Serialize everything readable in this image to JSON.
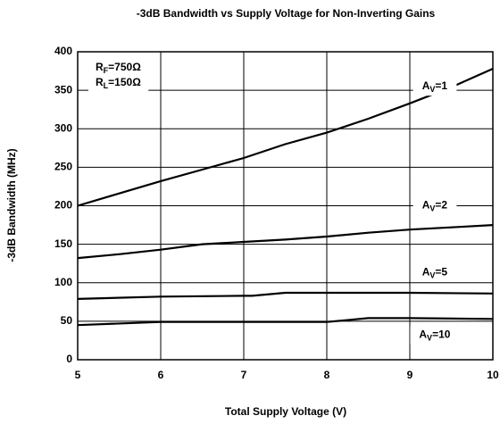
{
  "chart_data": {
    "type": "line",
    "title": "-3dB Bandwidth vs Supply Voltage for Non-Inverting Gains",
    "x_label": "Total Supply Voltage (V)",
    "y_label": "-3dB Bandwidth (MHz)",
    "annotations": [
      "RF=750Ω",
      "RL=150Ω"
    ],
    "xlim": [
      5,
      10
    ],
    "xticks": [
      5,
      6,
      7,
      8,
      9,
      10
    ],
    "ylim": [
      0,
      400
    ],
    "yticks": [
      0,
      50,
      100,
      150,
      200,
      250,
      300,
      350,
      400
    ],
    "grid": true,
    "series": [
      {
        "name": "AV=1",
        "color": "#000000",
        "x": [
          5,
          5.5,
          6,
          6.5,
          7,
          7.5,
          8,
          8.5,
          9,
          9.5,
          10
        ],
        "values": [
          200,
          216,
          232,
          247,
          262,
          280,
          295,
          313,
          333,
          354,
          378
        ]
      },
      {
        "name": "AV=2",
        "color": "#000000",
        "x": [
          5,
          5.5,
          6,
          6.5,
          7,
          7.5,
          8,
          8.5,
          9,
          9.5,
          10
        ],
        "values": [
          132,
          137,
          143,
          150,
          153,
          156,
          160,
          165,
          169,
          172,
          175
        ]
      },
      {
        "name": "AV=5",
        "color": "#000000",
        "x": [
          5,
          6,
          7,
          7.1,
          7.5,
          8,
          9,
          10
        ],
        "values": [
          79,
          82,
          83,
          83,
          87,
          87,
          87,
          86
        ]
      },
      {
        "name": "AV=10",
        "color": "#000000",
        "x": [
          5,
          6,
          7,
          8,
          8.5,
          9,
          10
        ],
        "values": [
          45,
          49,
          49,
          49,
          54,
          54,
          53
        ]
      }
    ]
  }
}
